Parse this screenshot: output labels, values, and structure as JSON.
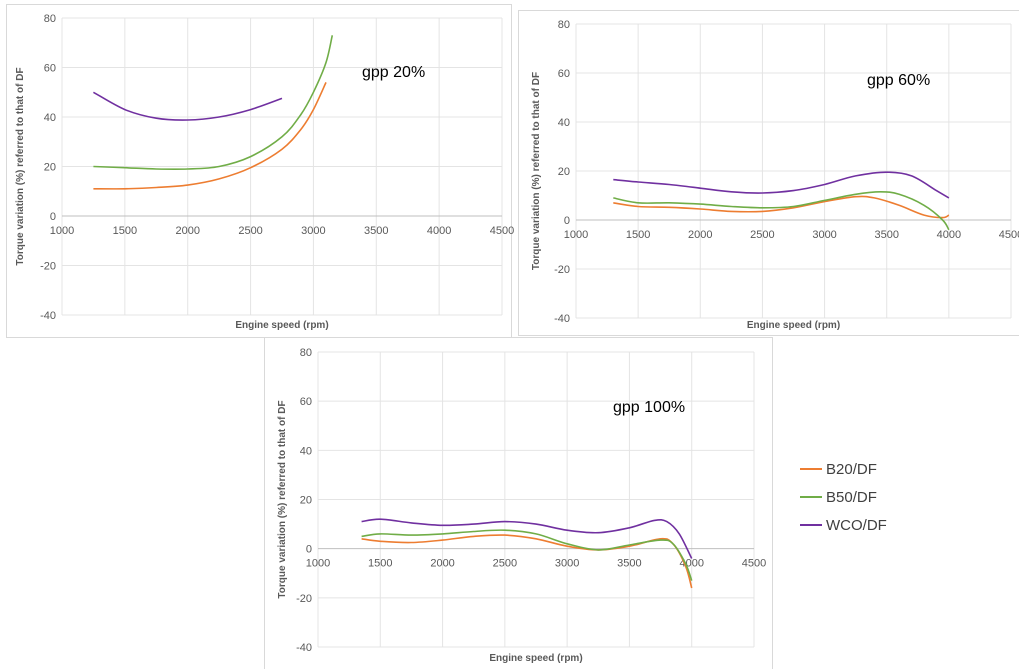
{
  "legend": [
    {
      "name": "B20/DF",
      "color": "#ed7d31"
    },
    {
      "name": "B50/DF",
      "color": "#70ad47"
    },
    {
      "name": "WCO/DF",
      "color": "#7030a0"
    }
  ],
  "chart_data": [
    {
      "type": "line",
      "title": "",
      "annotation": "gpp 20%",
      "xlabel": "Engine speed (rpm)",
      "ylabel": "Torque variation (%) referred to that of DF",
      "xlim": [
        1000,
        4500
      ],
      "ylim": [
        -40,
        80
      ],
      "xticks": [
        "1000",
        "1500",
        "2000",
        "2500",
        "3000",
        "3500",
        "4000",
        "4500"
      ],
      "yticks": [
        "80",
        "60",
        "40",
        "20",
        "0",
        "-20",
        "-40"
      ],
      "grid": true,
      "series": [
        {
          "name": "B20/DF",
          "x": [
            1250,
            1500,
            1750,
            2000,
            2250,
            2500,
            2750,
            2900,
            3000,
            3100
          ],
          "y": [
            11,
            11,
            11.5,
            12.5,
            15,
            19.5,
            27,
            35,
            43,
            54
          ]
        },
        {
          "name": "B50/DF",
          "x": [
            1250,
            1500,
            1750,
            2000,
            2250,
            2500,
            2750,
            2900,
            3000,
            3100,
            3150
          ],
          "y": [
            20,
            19.5,
            19,
            19,
            20,
            24,
            32,
            41,
            50,
            62,
            73
          ]
        },
        {
          "name": "WCO/DF",
          "x": [
            1250,
            1500,
            1750,
            2000,
            2250,
            2500,
            2750
          ],
          "y": [
            50,
            43,
            39.5,
            38.8,
            40,
            43,
            47.5
          ]
        }
      ]
    },
    {
      "type": "line",
      "title": "",
      "annotation": "gpp 60%",
      "xlabel": "Engine speed (rpm)",
      "ylabel": "Torque variation (%) referred to that of DF",
      "xlim": [
        1000,
        4500
      ],
      "ylim": [
        -40,
        80
      ],
      "xticks": [
        "1000",
        "1500",
        "2000",
        "2500",
        "3000",
        "3500",
        "4000",
        "4500"
      ],
      "yticks": [
        "80",
        "60",
        "40",
        "20",
        "0",
        "-20",
        "-40"
      ],
      "grid": true,
      "series": [
        {
          "name": "B20/DF",
          "x": [
            1300,
            1500,
            1750,
            2000,
            2250,
            2500,
            2750,
            3000,
            3250,
            3400,
            3600,
            3800,
            3950,
            4000
          ],
          "y": [
            7,
            5.5,
            5.2,
            4.5,
            3.5,
            3.5,
            5,
            7.5,
            9.5,
            9,
            6,
            2,
            1,
            2
          ]
        },
        {
          "name": "B50/DF",
          "x": [
            1300,
            1500,
            1750,
            2000,
            2250,
            2500,
            2750,
            3000,
            3250,
            3450,
            3600,
            3800,
            3950,
            4000
          ],
          "y": [
            9,
            7,
            7,
            6.5,
            5.5,
            5,
            5.5,
            8,
            10.5,
            11.5,
            10.5,
            6,
            0,
            -4
          ]
        },
        {
          "name": "WCO/DF",
          "x": [
            1300,
            1500,
            1750,
            2000,
            2250,
            2500,
            2750,
            3000,
            3250,
            3500,
            3700,
            3900,
            4000
          ],
          "y": [
            16.5,
            15.5,
            14.5,
            13,
            11.5,
            11,
            12,
            14.5,
            18,
            19.5,
            18,
            12,
            9
          ]
        }
      ]
    },
    {
      "type": "line",
      "title": "",
      "annotation": "gpp 100%",
      "xlabel": "Engine speed (rpm)",
      "ylabel": "Torque variation (%) referred to that of DF",
      "xlim": [
        1000,
        4500
      ],
      "ylim": [
        -40,
        80
      ],
      "xticks": [
        "1000",
        "1500",
        "2000",
        "2500",
        "3000",
        "3500",
        "4000",
        "4500"
      ],
      "yticks": [
        "80",
        "60",
        "40",
        "20",
        "0",
        "-20",
        "-40"
      ],
      "grid": true,
      "series": [
        {
          "name": "B20/DF",
          "x": [
            1350,
            1500,
            1750,
            2000,
            2250,
            2500,
            2750,
            3000,
            3250,
            3500,
            3750,
            3850,
            3950,
            4000
          ],
          "y": [
            4,
            3,
            2.5,
            3.5,
            5,
            5.5,
            4,
            1,
            -0.5,
            1,
            4,
            2,
            -7,
            -16
          ]
        },
        {
          "name": "B50/DF",
          "x": [
            1350,
            1500,
            1750,
            2000,
            2250,
            2500,
            2750,
            3000,
            3250,
            3500,
            3750,
            3850,
            3950,
            4000
          ],
          "y": [
            5,
            6,
            5.5,
            6,
            7,
            7.5,
            6,
            2,
            -0.5,
            1.5,
            3.5,
            2,
            -6,
            -13
          ]
        },
        {
          "name": "WCO/DF",
          "x": [
            1350,
            1500,
            1750,
            2000,
            2250,
            2500,
            2750,
            3000,
            3250,
            3500,
            3700,
            3800,
            3900,
            4000
          ],
          "y": [
            11,
            12,
            10.5,
            9.5,
            10,
            11,
            10,
            7.5,
            6.5,
            8.5,
            11.5,
            11,
            6,
            -4
          ]
        }
      ]
    }
  ]
}
